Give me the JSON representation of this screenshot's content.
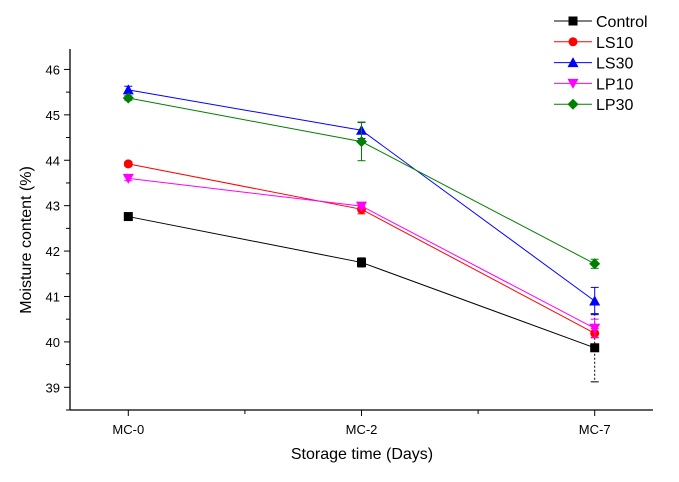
{
  "chart_data": {
    "type": "line",
    "title": "",
    "xlabel": "Storage time (Days)",
    "ylabel": "Moisture content (%)",
    "categories": [
      "MC-0",
      "MC-2",
      "MC-7"
    ],
    "ylim": [
      38.5,
      46.45
    ],
    "yticks": [
      39,
      40,
      41,
      42,
      43,
      44,
      45,
      46
    ],
    "ytick_labels": [
      "39",
      "40",
      "41",
      "42",
      "43",
      "44",
      "45",
      "46"
    ],
    "grid": false,
    "legend_position": "top-right",
    "series": [
      {
        "name": "Control",
        "color": "#000000",
        "marker": "square",
        "values": [
          42.76,
          41.75,
          39.87
        ],
        "errors": [
          0.05,
          0.1,
          0.75
        ]
      },
      {
        "name": "LS10",
        "color": "#ff0000",
        "marker": "circle",
        "values": [
          43.92,
          42.92,
          40.19
        ],
        "errors": [
          0.05,
          0.1,
          0.1
        ]
      },
      {
        "name": "LS30",
        "color": "#0000ff",
        "marker": "triangle-up",
        "values": [
          45.55,
          44.66,
          40.9
        ],
        "errors": [
          0.08,
          0.18,
          0.3
        ]
      },
      {
        "name": "LP10",
        "color": "#ff00ff",
        "marker": "triangle-down",
        "values": [
          43.6,
          42.99,
          40.3
        ],
        "errors": [
          0.05,
          0.05,
          0.2
        ]
      },
      {
        "name": "LP30",
        "color": "#008000",
        "marker": "diamond",
        "values": [
          45.37,
          44.41,
          41.72
        ],
        "errors": [
          0.05,
          0.42,
          0.1
        ]
      }
    ]
  }
}
